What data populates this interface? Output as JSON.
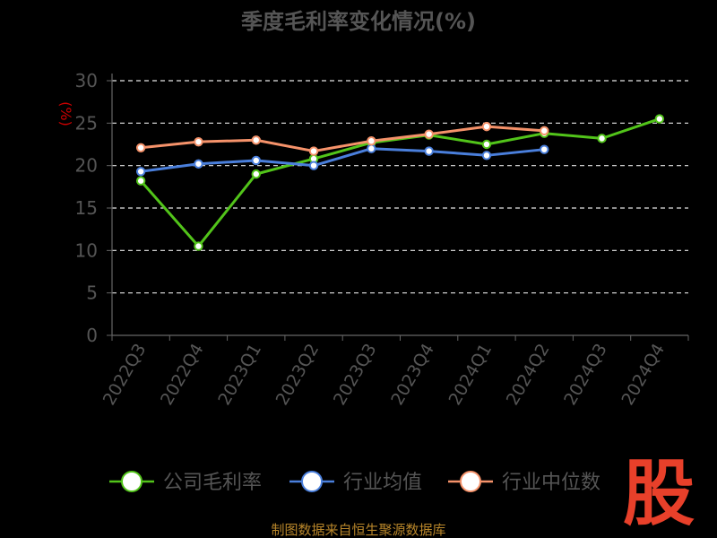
{
  "chart_data": {
    "type": "line",
    "title": "季度毛利率变化情况(%)",
    "ylabel": "(%)",
    "ylim": [
      0,
      30
    ],
    "yticks": [
      "0",
      "5",
      "10",
      "15",
      "20",
      "25",
      "30"
    ],
    "grid": true,
    "legend_position": "bottom",
    "categories": [
      "2022Q3",
      "2022Q4",
      "2023Q1",
      "2023Q2",
      "2023Q3",
      "2023Q4",
      "2024Q1",
      "2024Q2",
      "2024Q3",
      "2024Q4"
    ],
    "series": [
      {
        "name": "公司毛利率",
        "color": "#52c41a",
        "values": [
          18.2,
          10.5,
          19.0,
          20.8,
          22.7,
          23.6,
          22.5,
          23.8,
          23.2,
          25.5
        ]
      },
      {
        "name": "行业均值",
        "color": "#4a7fdc",
        "values": [
          19.3,
          20.2,
          20.6,
          20.0,
          22.0,
          21.7,
          21.2,
          21.9,
          null,
          null
        ]
      },
      {
        "name": "行业中位数",
        "color": "#f5926a",
        "values": [
          22.1,
          22.8,
          23.0,
          21.7,
          22.9,
          23.7,
          24.6,
          24.1,
          null,
          null
        ]
      }
    ]
  },
  "source": "制图数据来自恒生聚源数据库",
  "logo": "股"
}
